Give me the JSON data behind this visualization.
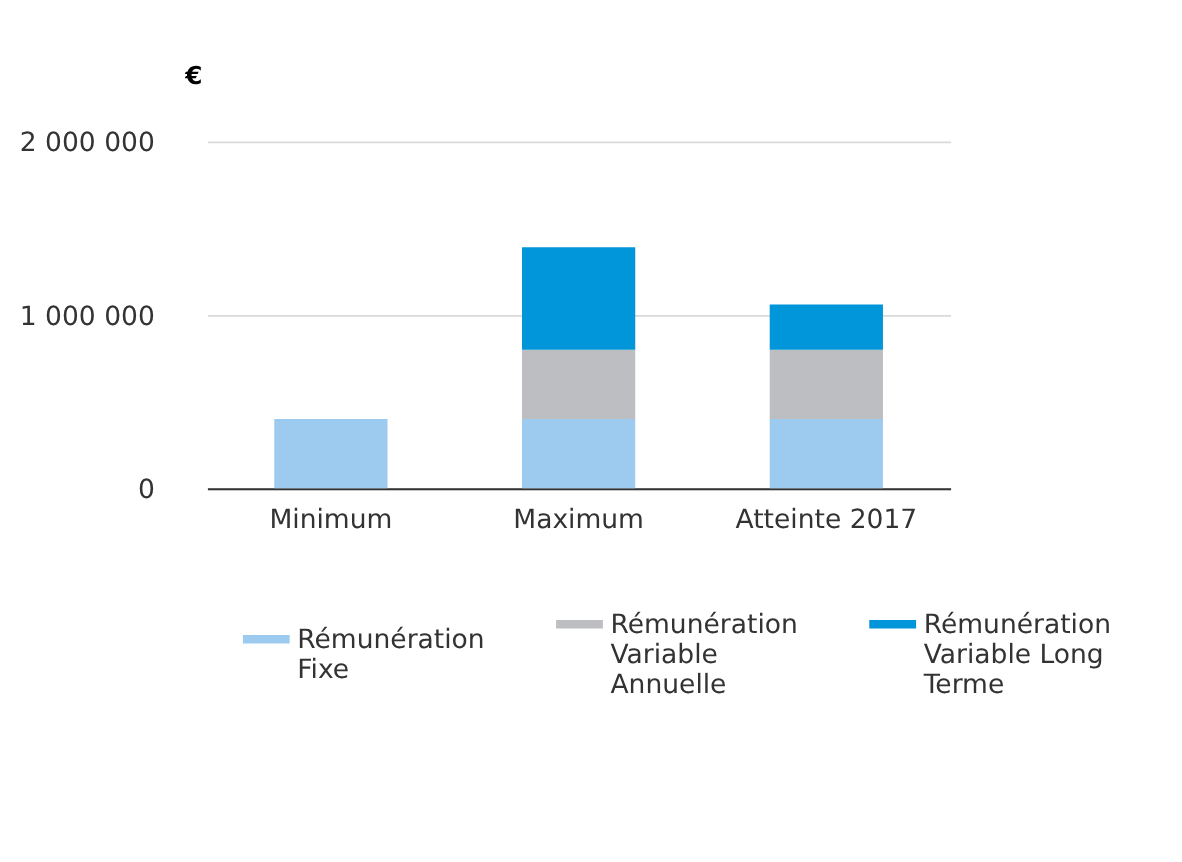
{
  "chart_data": {
    "type": "bar",
    "stacked": true,
    "ylabel": "€",
    "categories": [
      "Minimum",
      "Maximum",
      "Atteinte 2017"
    ],
    "series": [
      {
        "name": "Rémunération Fixe",
        "color": "#9dcbef",
        "values": [
          400000,
          400000,
          400000
        ]
      },
      {
        "name": "Rémunération Variable Annuelle",
        "color": "#bdbec2",
        "values": [
          null,
          400000,
          400000
        ]
      },
      {
        "name": "Rémunération Variable Long Terme",
        "color": "#0096d9",
        "values": [
          null,
          590000,
          260000
        ]
      }
    ],
    "ylim": [
      0,
      2000000
    ],
    "yticks": [
      {
        "value": 0,
        "label": "0"
      },
      {
        "value": 1000000,
        "label": "1 000 000"
      },
      {
        "value": 2000000,
        "label": "2 000 000"
      }
    ],
    "grid": "y",
    "legend": "bottom"
  }
}
